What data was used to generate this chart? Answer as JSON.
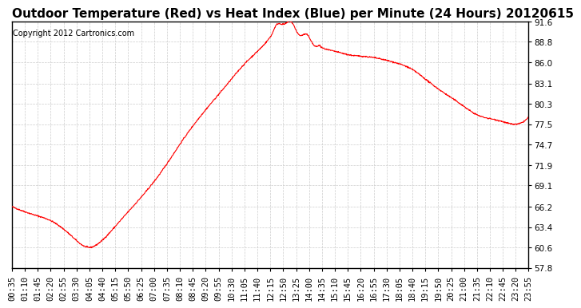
{
  "title": "Outdoor Temperature (Red) vs Heat Index (Blue) per Minute (24 Hours) 20120615",
  "copyright": "Copyright 2012 Cartronics.com",
  "ymin": 57.8,
  "ymax": 91.6,
  "yticks": [
    91.6,
    88.8,
    86.0,
    83.1,
    80.3,
    77.5,
    74.7,
    71.9,
    69.1,
    66.2,
    63.4,
    60.6,
    57.8
  ],
  "xtick_labels": [
    "00:35",
    "01:10",
    "01:45",
    "02:20",
    "02:55",
    "03:30",
    "04:05",
    "04:40",
    "05:15",
    "05:50",
    "06:25",
    "07:00",
    "07:35",
    "08:10",
    "08:45",
    "09:20",
    "09:55",
    "10:30",
    "11:05",
    "11:40",
    "12:15",
    "12:50",
    "13:25",
    "14:00",
    "14:35",
    "15:10",
    "15:45",
    "16:20",
    "16:55",
    "17:30",
    "18:05",
    "18:40",
    "19:15",
    "19:50",
    "20:25",
    "21:00",
    "21:35",
    "22:10",
    "22:45",
    "23:20",
    "23:55"
  ],
  "line_color": "#ff0000",
  "bg_color": "#ffffff",
  "grid_color": "#cccccc",
  "title_fontsize": 11,
  "copyright_fontsize": 7,
  "tick_fontsize": 7.5
}
